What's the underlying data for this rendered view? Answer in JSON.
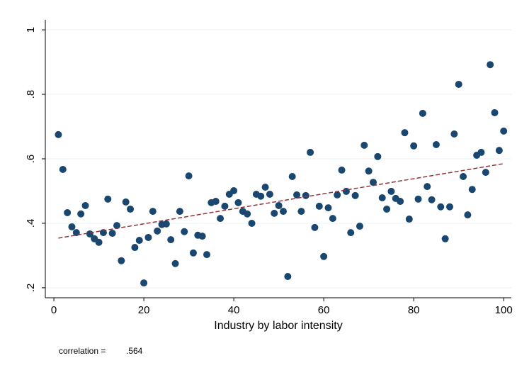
{
  "chart_data": {
    "type": "scatter",
    "xlabel": "Industry by labor intensity",
    "annotation": {
      "label": "correlation =",
      "value": ".564"
    },
    "color": "#1a476f",
    "fit_line": {
      "color": "#90353b",
      "x": [
        1,
        100
      ],
      "values": [
        0.354,
        0.585
      ]
    },
    "x": [
      1,
      2,
      3,
      4,
      5,
      6,
      7,
      8,
      9,
      10,
      11,
      12,
      13,
      14,
      15,
      16,
      17,
      18,
      19,
      20,
      21,
      22,
      23,
      24,
      25,
      26,
      27,
      28,
      29,
      30,
      31,
      32,
      33,
      34,
      35,
      36,
      37,
      38,
      39,
      40,
      41,
      42,
      43,
      44,
      45,
      46,
      47,
      48,
      49,
      50,
      51,
      52,
      53,
      54,
      55,
      56,
      57,
      58,
      59,
      60,
      61,
      62,
      63,
      64,
      65,
      66,
      67,
      68,
      69,
      70,
      71,
      72,
      73,
      74,
      75,
      76,
      77,
      78,
      79,
      80,
      81,
      82,
      83,
      84,
      85,
      86,
      87,
      88,
      89,
      90,
      91,
      92,
      93,
      94,
      95,
      96,
      97,
      98,
      99,
      100
    ],
    "values": [
      0.675,
      0.567,
      0.433,
      0.389,
      0.371,
      0.429,
      0.455,
      0.367,
      0.352,
      0.341,
      0.371,
      0.475,
      0.369,
      0.393,
      0.284,
      0.466,
      0.444,
      0.325,
      0.347,
      0.215,
      0.356,
      0.437,
      0.376,
      0.396,
      0.398,
      0.349,
      0.275,
      0.437,
      0.374,
      0.547,
      0.308,
      0.363,
      0.36,
      0.303,
      0.464,
      0.468,
      0.415,
      0.453,
      0.49,
      0.501,
      0.464,
      0.437,
      0.429,
      0.4,
      0.49,
      0.484,
      0.512,
      0.49,
      0.431,
      0.455,
      0.437,
      0.235,
      0.545,
      0.488,
      0.437,
      0.486,
      0.62,
      0.387,
      0.453,
      0.297,
      0.448,
      0.415,
      0.488,
      0.565,
      0.499,
      0.371,
      0.486,
      0.391,
      0.642,
      0.562,
      0.527,
      0.607,
      0.479,
      0.444,
      0.499,
      0.477,
      0.468,
      0.681,
      0.413,
      0.64,
      0.475,
      0.741,
      0.514,
      0.473,
      0.644,
      0.451,
      0.352,
      0.451,
      0.677,
      0.831,
      0.545,
      0.426,
      0.505,
      0.611,
      0.62,
      0.558,
      0.892,
      0.743,
      0.626,
      0.686
    ],
    "xlim": [
      -1.9,
      101.7
    ],
    "ylim": [
      0.169,
      1.031
    ],
    "xticks": [
      0,
      20,
      40,
      60,
      80,
      100
    ],
    "yticks": [
      {
        "value": 0.2,
        "label": ".2"
      },
      {
        "value": 0.4,
        "label": ".4"
      },
      {
        "value": 0.6,
        "label": ".6"
      },
      {
        "value": 0.8,
        "label": ".8"
      },
      1
    ],
    "grid": true
  }
}
